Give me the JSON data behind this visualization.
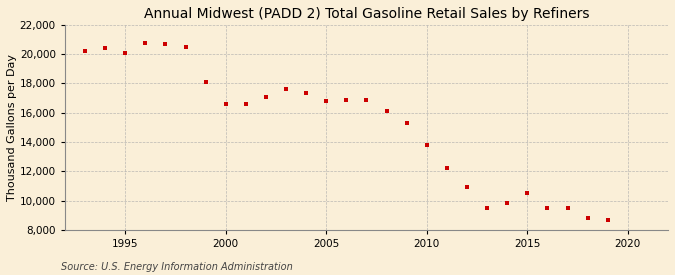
{
  "title": "Annual Midwest (PADD 2) Total Gasoline Retail Sales by Refiners",
  "ylabel": "Thousand Gallons per Day",
  "source": "Source: U.S. Energy Information Administration",
  "background_color": "#faefd8",
  "marker_color": "#cc0000",
  "years": [
    1993,
    1994,
    1995,
    1996,
    1997,
    1998,
    1999,
    2000,
    2001,
    2002,
    2003,
    2004,
    2005,
    2006,
    2007,
    2008,
    2009,
    2010,
    2011,
    2012,
    2013,
    2014,
    2015,
    2016,
    2017,
    2018,
    2019
  ],
  "values": [
    20200,
    20400,
    20100,
    20750,
    20700,
    20500,
    18100,
    16600,
    16600,
    17100,
    17600,
    17350,
    16800,
    16900,
    16900,
    16100,
    15300,
    13800,
    12200,
    10900,
    9500,
    9800,
    10500,
    9500,
    9500,
    8800,
    8700
  ],
  "xlim": [
    1992,
    2022
  ],
  "ylim": [
    8000,
    22000
  ],
  "yticks": [
    8000,
    10000,
    12000,
    14000,
    16000,
    18000,
    20000,
    22000
  ],
  "xticks": [
    1995,
    2000,
    2005,
    2010,
    2015,
    2020
  ],
  "grid_color": "#aaaaaa",
  "title_fontsize": 10,
  "ylabel_fontsize": 8,
  "tick_fontsize": 7.5,
  "source_fontsize": 7
}
